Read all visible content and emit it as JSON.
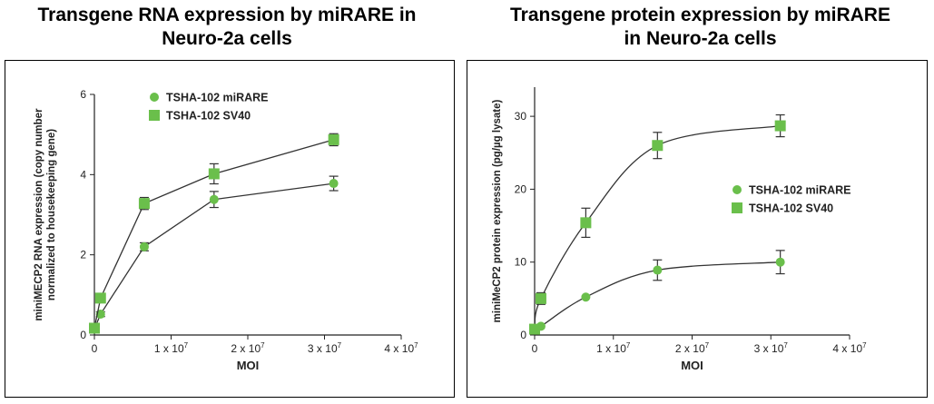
{
  "titles": {
    "left_line1": "Transgene RNA expression by miRARE in",
    "left_line2": "Neuro-2a cells",
    "right_line1": "Transgene protein expression by miRARE",
    "right_line2": "in Neuro-2a cells"
  },
  "colors": {
    "marker": "#6abf4b",
    "line": "#333333",
    "axis": "#222222"
  },
  "chart_data": [
    {
      "type": "line",
      "title": "Transgene RNA expression by miRARE in Neuro-2a cells",
      "xlabel": "MOI",
      "ylabel_line1": "miniMECP2 RNA expression (copy number",
      "ylabel_line2": "normalized to housekeeping gene)",
      "xlim": [
        0,
        40000000
      ],
      "ylim": [
        0,
        6
      ],
      "xticks": [
        0,
        10000000,
        20000000,
        30000000,
        40000000
      ],
      "xtick_labels": [
        {
          "base": "0",
          "exp": ""
        },
        {
          "base": "1 x 10",
          "exp": "7"
        },
        {
          "base": "2 x 10",
          "exp": "7"
        },
        {
          "base": "3 x 10",
          "exp": "7"
        },
        {
          "base": "4 x 10",
          "exp": "7"
        }
      ],
      "yticks": [
        0,
        2,
        4,
        6
      ],
      "ytick_labels": [
        "0",
        "2",
        "4",
        "6"
      ],
      "legend": "top-left",
      "grid": false,
      "series": [
        {
          "name": "TSHA-102 miRARE",
          "marker": "circle",
          "x": [
            0,
            800000,
            6500000,
            15600000,
            31200000
          ],
          "y": [
            0.15,
            0.52,
            2.2,
            3.38,
            3.78
          ],
          "err": [
            0.05,
            0.06,
            0.1,
            0.2,
            0.18
          ],
          "curve": "segments"
        },
        {
          "name": "TSHA-102 SV40",
          "marker": "square",
          "x": [
            0,
            800000,
            6500000,
            15600000,
            31200000
          ],
          "y": [
            0.17,
            0.92,
            3.28,
            4.02,
            4.87
          ],
          "err": [
            0.05,
            0.08,
            0.15,
            0.25,
            0.15
          ],
          "curve": "segments"
        }
      ]
    },
    {
      "type": "line",
      "title": "Transgene protein expression by miRARE in Neuro-2a cells",
      "xlabel": "MOI",
      "ylabel_line1": "miniMeCP2 protein expression (pg/µg lysate)",
      "xlim": [
        0,
        40000000
      ],
      "ylim": [
        0,
        34
      ],
      "xticks": [
        0,
        10000000,
        20000000,
        30000000,
        40000000
      ],
      "xtick_labels": [
        {
          "base": "0",
          "exp": ""
        },
        {
          "base": "1 x 10",
          "exp": "7"
        },
        {
          "base": "2 x 10",
          "exp": "7"
        },
        {
          "base": "3 x 10",
          "exp": "7"
        },
        {
          "base": "4 x 10",
          "exp": "7"
        }
      ],
      "yticks": [
        0,
        10,
        20,
        30
      ],
      "ytick_labels": [
        "0",
        "10",
        "20",
        "30"
      ],
      "legend": "center-right",
      "grid": false,
      "series": [
        {
          "name": "TSHA-102 miRARE",
          "marker": "circle",
          "x": [
            0,
            800000,
            6500000,
            15600000,
            31200000
          ],
          "y": [
            0.8,
            1.2,
            5.2,
            8.9,
            10.0
          ],
          "err": [
            0,
            0,
            0,
            1.4,
            1.6
          ],
          "curve": "smooth"
        },
        {
          "name": "TSHA-102 SV40",
          "marker": "square",
          "x": [
            0,
            800000,
            6500000,
            15600000,
            31200000
          ],
          "y": [
            0.8,
            5.0,
            15.4,
            26.0,
            28.7
          ],
          "err": [
            0,
            0.8,
            2.0,
            1.8,
            1.5
          ],
          "curve": "smooth"
        }
      ]
    }
  ]
}
